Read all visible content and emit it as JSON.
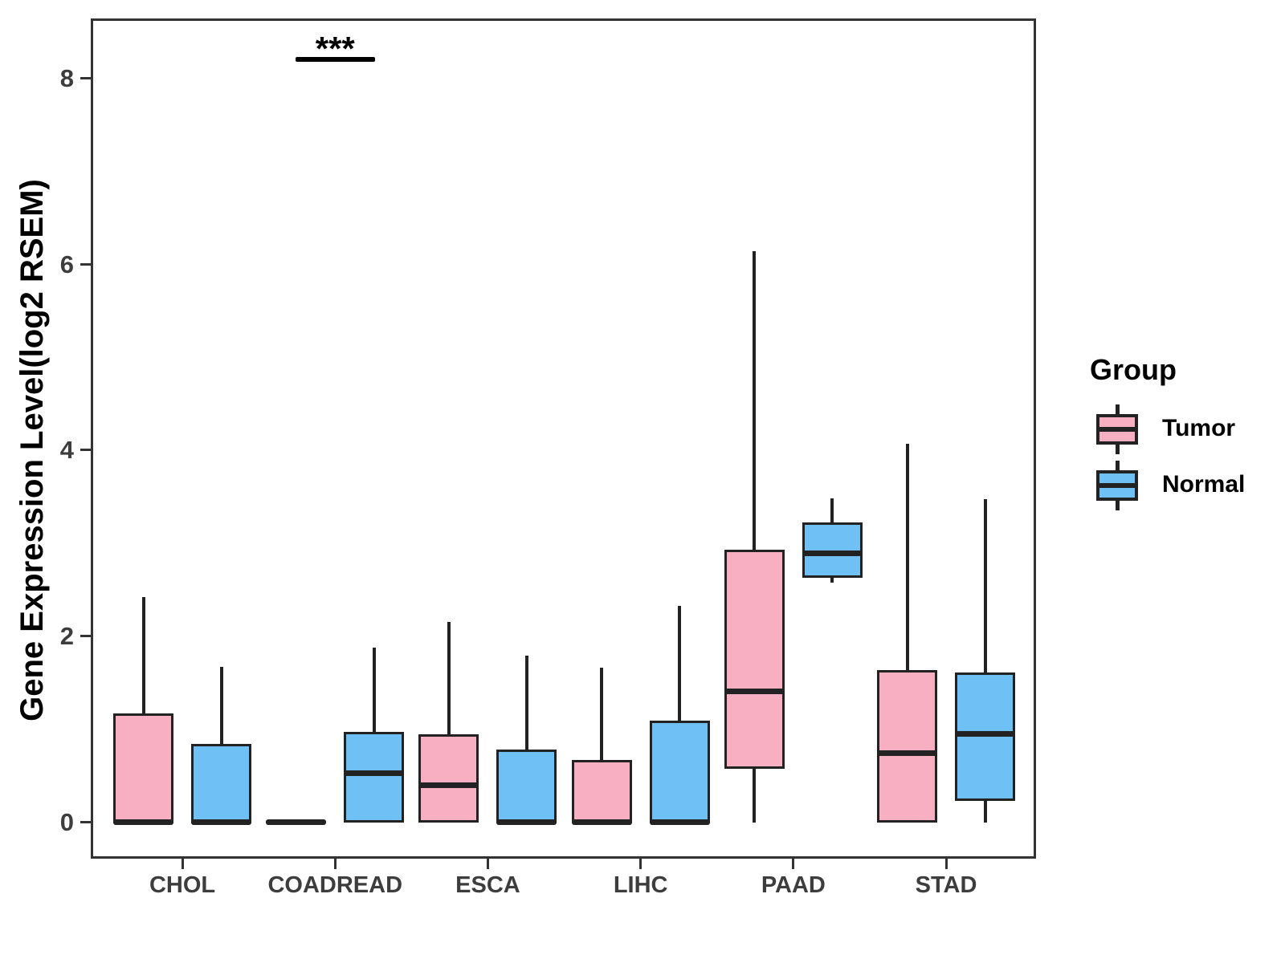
{
  "chart_data": {
    "type": "boxplot",
    "title": "",
    "xlabel": "",
    "ylabel": "Gene Expression Level(log2 RSEM)",
    "categories": [
      "CHOL",
      "COADREAD",
      "ESCA",
      "LIHC",
      "PAAD",
      "STAD"
    ],
    "yticks": [
      0,
      2,
      4,
      6,
      8
    ],
    "ytick_labels": [
      "0",
      "2",
      "4",
      "6",
      "8"
    ],
    "ylim": [
      -0.39,
      8.64
    ],
    "grid": "off",
    "series": [
      {
        "name": "Tumor",
        "color": "#F9AFC2",
        "boxes": [
          {
            "category": "CHOL",
            "whisker_low": 0,
            "q1": 0,
            "median": 0,
            "q3": 1.17,
            "whisker_high": 2.42
          },
          {
            "category": "COADREAD",
            "whisker_low": 0,
            "q1": 0,
            "median": 0,
            "q3": 0,
            "whisker_high": 0
          },
          {
            "category": "ESCA",
            "whisker_low": 0,
            "q1": 0,
            "median": 0.4,
            "q3": 0.95,
            "whisker_high": 2.15
          },
          {
            "category": "LIHC",
            "whisker_low": 0,
            "q1": 0,
            "median": 0,
            "q3": 0.67,
            "whisker_high": 1.66
          },
          {
            "category": "PAAD",
            "whisker_low": 0,
            "q1": 0.58,
            "median": 1.41,
            "q3": 2.93,
            "whisker_high": 6.14
          },
          {
            "category": "STAD",
            "whisker_low": 0,
            "q1": 0,
            "median": 0.74,
            "q3": 1.64,
            "whisker_high": 4.07
          }
        ]
      },
      {
        "name": "Normal",
        "color": "#6FC0F5",
        "boxes": [
          {
            "category": "CHOL",
            "whisker_low": 0,
            "q1": 0,
            "median": 0,
            "q3": 0.84,
            "whisker_high": 1.67
          },
          {
            "category": "COADREAD",
            "whisker_low": 0,
            "q1": 0,
            "median": 0.53,
            "q3": 0.97,
            "whisker_high": 1.88
          },
          {
            "category": "ESCA",
            "whisker_low": 0,
            "q1": 0,
            "median": 0,
            "q3": 0.78,
            "whisker_high": 1.79
          },
          {
            "category": "LIHC",
            "whisker_low": 0,
            "q1": 0,
            "median": 0,
            "q3": 1.09,
            "whisker_high": 2.33
          },
          {
            "category": "PAAD",
            "whisker_low": 2.58,
            "q1": 2.63,
            "median": 2.89,
            "q3": 3.22,
            "whisker_high": 3.48
          },
          {
            "category": "STAD",
            "whisker_low": 0,
            "q1": 0.23,
            "median": 0.95,
            "q3": 1.61,
            "whisker_high": 3.47
          }
        ]
      }
    ],
    "annotation": {
      "label": "***",
      "category": "COADREAD",
      "y": 8.2
    },
    "legend": {
      "title": "Group",
      "position": "right",
      "entries": [
        "Tumor",
        "Normal"
      ]
    }
  }
}
